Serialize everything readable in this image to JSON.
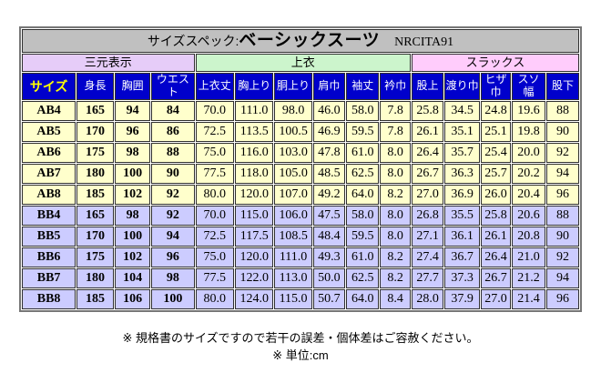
{
  "table": {
    "title": {
      "prefix": "サイズスペック:",
      "product": "ベーシックスーツ",
      "code": "NRCITA91",
      "background": "#c0c0c0"
    },
    "column_groups": [
      {
        "label": "三元表示",
        "colspan": 4,
        "background": "#e6ccf8"
      },
      {
        "label": "上衣",
        "colspan": 6,
        "background": "#ccf5cc"
      },
      {
        "label": "スラックス",
        "colspan": 5,
        "background": "#ffccfc"
      }
    ],
    "columns": [
      "サイズ",
      "身長",
      "胸囲",
      "ウエスト",
      "上衣丈",
      "胸上り",
      "胴上り",
      "肩巾",
      "袖丈",
      "衿巾",
      "股上",
      "渡り巾",
      "ヒザ巾",
      "スソ幅",
      "股下"
    ],
    "header_style": {
      "background": "#0000cc",
      "text_color": "#ffffff",
      "size_label_color": "#ffff00"
    },
    "row_colors": {
      "AB": "#ffffcc",
      "BB": "#ccccff"
    },
    "bold_value_columns": 3,
    "rows": [
      {
        "size": "AB4",
        "values": [
          "165",
          "94",
          "84",
          "70.0",
          "111.0",
          "98.0",
          "46.0",
          "58.0",
          "7.8",
          "25.8",
          "34.5",
          "24.8",
          "19.6",
          "88"
        ]
      },
      {
        "size": "AB5",
        "values": [
          "170",
          "96",
          "86",
          "72.5",
          "113.5",
          "100.5",
          "46.9",
          "59.5",
          "7.8",
          "26.1",
          "35.1",
          "25.1",
          "19.8",
          "90"
        ]
      },
      {
        "size": "AB6",
        "values": [
          "175",
          "98",
          "88",
          "75.0",
          "116.0",
          "103.0",
          "47.8",
          "61.0",
          "8.0",
          "26.4",
          "35.7",
          "25.4",
          "20.0",
          "92"
        ]
      },
      {
        "size": "AB7",
        "values": [
          "180",
          "100",
          "90",
          "77.5",
          "118.0",
          "105.0",
          "48.5",
          "62.5",
          "8.0",
          "26.7",
          "36.3",
          "25.7",
          "20.2",
          "94"
        ]
      },
      {
        "size": "AB8",
        "values": [
          "185",
          "102",
          "92",
          "80.0",
          "120.0",
          "107.0",
          "49.2",
          "64.0",
          "8.2",
          "27.0",
          "36.9",
          "26.0",
          "20.4",
          "96"
        ]
      },
      {
        "size": "BB4",
        "values": [
          "165",
          "98",
          "92",
          "70.0",
          "115.0",
          "106.0",
          "47.5",
          "58.0",
          "8.0",
          "26.8",
          "35.5",
          "25.8",
          "20.6",
          "88"
        ]
      },
      {
        "size": "BB5",
        "values": [
          "170",
          "100",
          "94",
          "72.5",
          "117.5",
          "108.5",
          "48.4",
          "59.5",
          "8.0",
          "27.1",
          "36.1",
          "26.1",
          "20.8",
          "90"
        ]
      },
      {
        "size": "BB6",
        "values": [
          "175",
          "102",
          "96",
          "75.0",
          "120.0",
          "111.0",
          "49.3",
          "61.0",
          "8.2",
          "27.4",
          "36.7",
          "26.4",
          "21.0",
          "92"
        ]
      },
      {
        "size": "BB7",
        "values": [
          "180",
          "104",
          "98",
          "77.5",
          "122.0",
          "113.0",
          "50.0",
          "62.5",
          "8.2",
          "27.7",
          "37.3",
          "26.7",
          "21.2",
          "94"
        ]
      },
      {
        "size": "BB8",
        "values": [
          "185",
          "106",
          "100",
          "80.0",
          "124.0",
          "115.0",
          "50.7",
          "64.0",
          "8.4",
          "28.0",
          "37.9",
          "27.0",
          "21.4",
          "96"
        ]
      }
    ]
  },
  "notes": [
    "※ 規格書のサイズですので若干の誤差・個体差はご容赦ください。",
    "※ 単位:cm"
  ]
}
